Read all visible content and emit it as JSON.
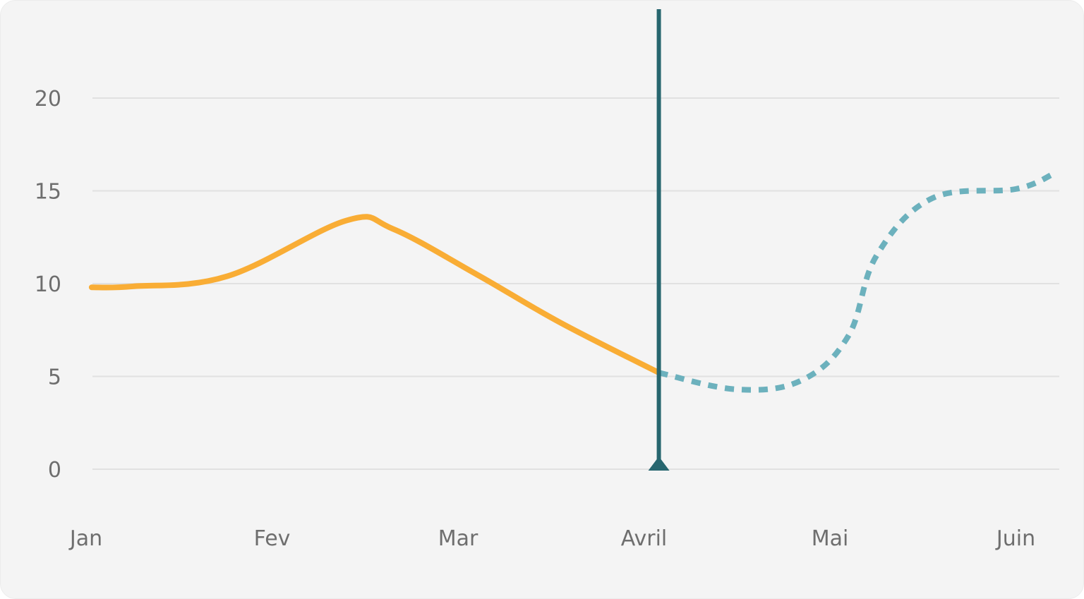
{
  "chart_data": {
    "type": "line",
    "categories": [
      "Jan",
      "Fev",
      "Mar",
      "Avril",
      "Mai",
      "Juin"
    ],
    "yticks": [
      0,
      5,
      10,
      15,
      20
    ],
    "ylim": [
      0,
      20
    ],
    "grid": true,
    "series": [
      {
        "style": "solid",
        "color": "#f9ad35",
        "points": [
          {
            "x": 0.03,
            "y": 9.8
          },
          {
            "x": 0.25,
            "y": 9.85
          },
          {
            "x": 0.76,
            "y": 10.4
          },
          {
            "x": 1.4,
            "y": 13.4
          },
          {
            "x": 1.65,
            "y": 12.95
          },
          {
            "x": 2.1,
            "y": 10.5
          },
          {
            "x": 2.55,
            "y": 7.9
          },
          {
            "x": 3.08,
            "y": 5.2
          }
        ]
      },
      {
        "style": "dotted",
        "color": "#6cb1bd",
        "points": [
          {
            "x": 3.08,
            "y": 5.2
          },
          {
            "x": 3.5,
            "y": 4.3
          },
          {
            "x": 3.85,
            "y": 4.8
          },
          {
            "x": 4.1,
            "y": 7.2
          },
          {
            "x": 4.25,
            "y": 11.5
          },
          {
            "x": 4.55,
            "y": 14.6
          },
          {
            "x": 5.0,
            "y": 15.1
          },
          {
            "x": 5.2,
            "y": 15.9
          }
        ]
      }
    ],
    "marker": {
      "x": 3.08,
      "color": "#27666f"
    }
  }
}
